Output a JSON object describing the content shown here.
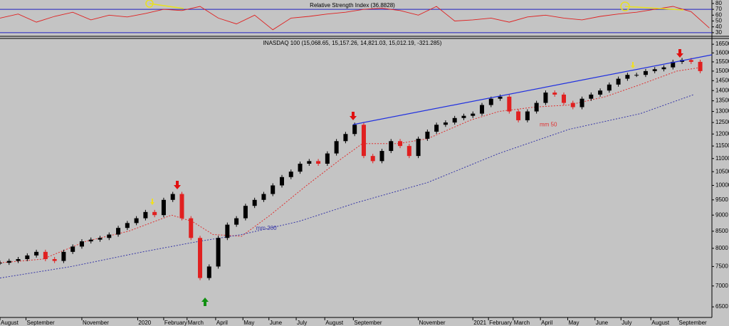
{
  "chart_data": [
    {
      "type": "line",
      "title": "Relative Strength Index (36.8828)",
      "x": [
        0,
        14,
        28,
        42,
        56,
        70,
        84,
        98,
        112,
        126,
        140,
        154,
        168,
        182,
        196,
        210,
        224,
        238,
        252,
        266,
        280,
        294,
        308,
        322,
        336,
        350,
        364,
        378,
        392,
        406,
        420,
        434,
        448,
        462,
        476,
        490,
        504,
        518,
        532,
        546
      ],
      "series": [
        {
          "color": "#e02020",
          "values": [
            55,
            62,
            48,
            58,
            65,
            52,
            60,
            57,
            63,
            70,
            68,
            75,
            55,
            45,
            60,
            35,
            55,
            58,
            62,
            65,
            70,
            72,
            68,
            60,
            75,
            50,
            52,
            55,
            48,
            57,
            60,
            55,
            52,
            58,
            62,
            65,
            70,
            75,
            66,
            38
          ]
        }
      ],
      "xlim": [
        0,
        548
      ],
      "ylim": [
        25,
        86
      ],
      "yticks": [
        30,
        40,
        50,
        60,
        70,
        80
      ],
      "ref_lines": [
        70,
        30
      ],
      "ref_color": "#2020c0"
    },
    {
      "type": "candlestick",
      "title": "INASDAQ 100 (15,068.65, 15,157.26, 14,821.03, 15,012.19, -321.285)",
      "x": [
        0,
        7,
        14,
        21,
        28,
        35,
        42,
        49,
        56,
        63,
        70,
        77,
        84,
        91,
        98,
        105,
        112,
        119,
        126,
        133,
        140,
        147,
        154,
        161,
        168,
        175,
        182,
        189,
        196,
        203,
        210,
        217,
        224,
        231,
        238,
        245,
        252,
        259,
        266,
        273,
        280,
        287,
        294,
        301,
        308,
        315,
        322,
        329,
        336,
        343,
        350,
        357,
        364,
        371,
        378,
        385,
        392,
        399,
        406,
        413,
        420,
        427,
        434,
        441,
        448,
        455,
        462,
        469,
        476,
        483,
        490,
        497,
        504,
        511,
        518,
        525,
        532,
        539
      ],
      "values": [
        7600,
        7650,
        7700,
        7800,
        7900,
        7700,
        7650,
        7900,
        8050,
        8200,
        8250,
        8300,
        8400,
        8600,
        8750,
        8900,
        9100,
        9000,
        9500,
        9700,
        8900,
        8300,
        7200,
        7500,
        8300,
        8700,
        8900,
        9300,
        9500,
        9700,
        10000,
        10300,
        10500,
        10800,
        10900,
        10800,
        11200,
        11700,
        12000,
        12400,
        11100,
        10900,
        11300,
        11700,
        11500,
        11100,
        11800,
        12100,
        12400,
        12500,
        12700,
        12800,
        12900,
        13300,
        13600,
        13700,
        13000,
        12600,
        13000,
        13400,
        13900,
        13800,
        13400,
        13200,
        13600,
        13800,
        14000,
        14300,
        14600,
        14800,
        14800,
        15000,
        15100,
        15200,
        15500,
        15600,
        15500,
        15000
      ],
      "up_color": "#000000",
      "down_color": "#e02020",
      "series": [
        {
          "name": "mm 50",
          "color": "#e03030",
          "x": [
            0,
            33,
            66,
            99,
            132,
            148,
            164,
            186,
            208,
            236,
            263,
            279,
            307,
            329,
            362,
            384,
            411,
            438,
            466,
            493,
            521,
            540
          ],
          "values": [
            7600,
            7700,
            8200,
            8500,
            9000,
            8800,
            8400,
            8350,
            9000,
            10000,
            11000,
            11600,
            11600,
            11800,
            12600,
            13000,
            13200,
            13300,
            13700,
            14300,
            15000,
            15200
          ]
        },
        {
          "name": "mm 200",
          "color": "#3838a8",
          "x": [
            0,
            55,
            110,
            153,
            186,
            230,
            274,
            329,
            384,
            438,
            493,
            534
          ],
          "values": [
            7200,
            7500,
            7900,
            8200,
            8400,
            8800,
            9400,
            10100,
            11200,
            12200,
            12900,
            13800
          ]
        }
      ],
      "xlim": [
        0,
        548
      ],
      "ylim": [
        6260,
        16800
      ],
      "log_scale": true,
      "yticks": [
        6500,
        7000,
        7500,
        8000,
        8500,
        9000,
        9500,
        10000,
        10500,
        11000,
        11500,
        12000,
        12500,
        13000,
        13500,
        14000,
        14500,
        15000,
        15500,
        16000,
        16500
      ],
      "xticks": [
        {
          "value": 0,
          "label": "August"
        },
        {
          "value": 20,
          "label": "September"
        },
        {
          "value": 63,
          "label": "November"
        },
        {
          "value": 106,
          "label": "2020"
        },
        {
          "value": 126,
          "label": "February"
        },
        {
          "value": 144,
          "label": "March"
        },
        {
          "value": 166,
          "label": "April"
        },
        {
          "value": 187,
          "label": "May"
        },
        {
          "value": 207,
          "label": "June"
        },
        {
          "value": 228,
          "label": "July"
        },
        {
          "value": 250,
          "label": "August"
        },
        {
          "value": 272,
          "label": "September"
        },
        {
          "value": 322,
          "label": "November"
        },
        {
          "value": 364,
          "label": "2021"
        },
        {
          "value": 376,
          "label": "February"
        },
        {
          "value": 395,
          "label": "March"
        },
        {
          "value": 416,
          "label": "April"
        },
        {
          "value": 437,
          "label": "May"
        },
        {
          "value": 458,
          "label": "June"
        },
        {
          "value": 478,
          "label": "July"
        },
        {
          "value": 501,
          "label": "August"
        },
        {
          "value": 522,
          "label": "September"
        }
      ]
    }
  ]
}
